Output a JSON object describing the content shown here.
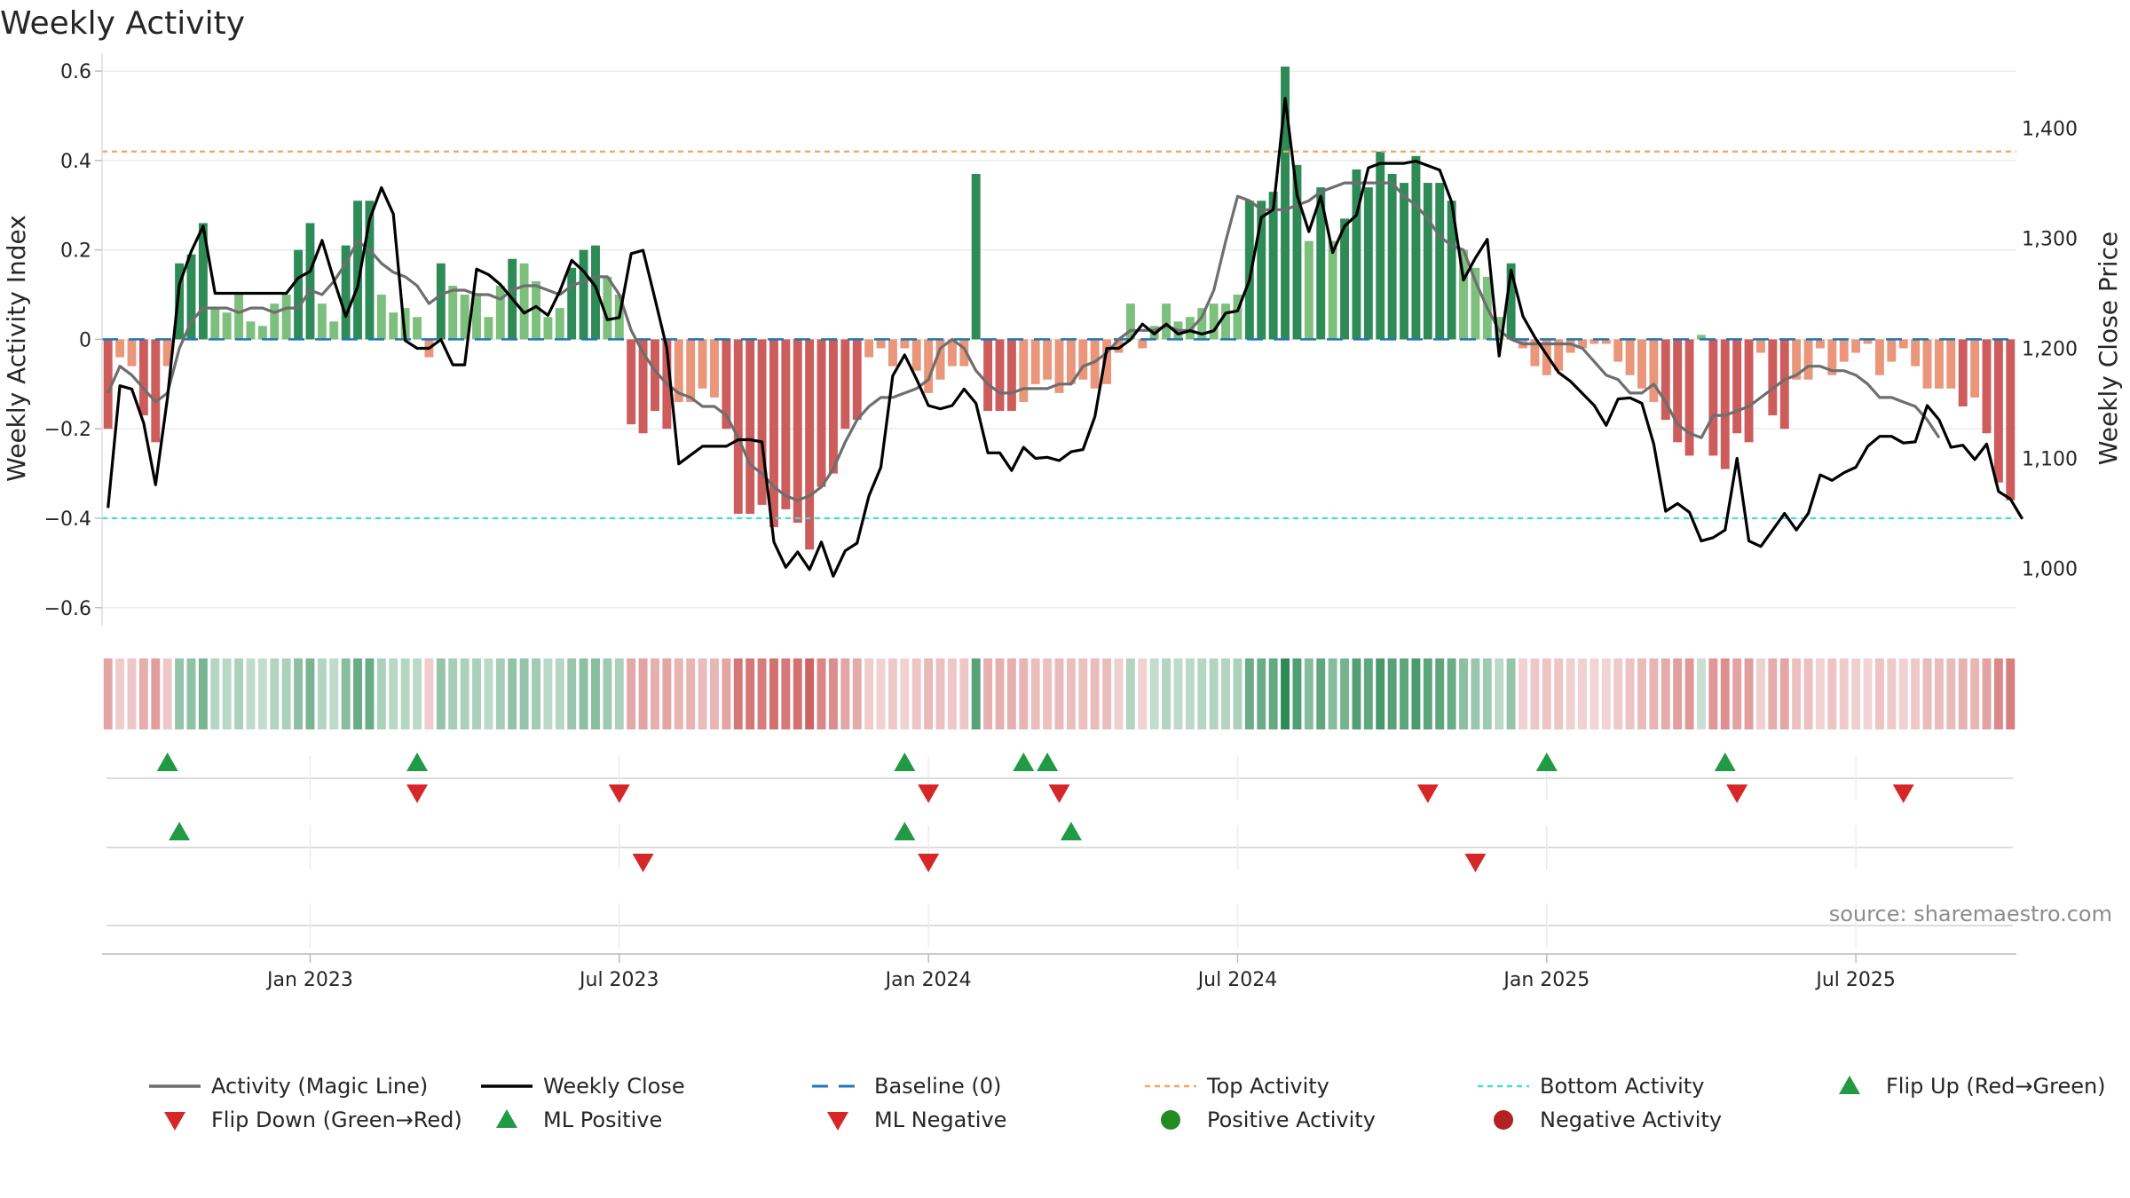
{
  "chart_data": {
    "type": "bar",
    "title": "Weekly Activity",
    "ylabel": "Weekly Activity Index",
    "y2label": "Weekly Close Price",
    "source": "source: sharemaestro.com",
    "ylim": [
      -0.66,
      0.62
    ],
    "y2lim": [
      940,
      1460
    ],
    "yticks": [
      {
        "v": 0.6,
        "label": "0.6"
      },
      {
        "v": 0.4,
        "label": "0.4"
      },
      {
        "v": 0.2,
        "label": "0.2"
      },
      {
        "v": 0,
        "label": "0"
      },
      {
        "v": -0.2,
        "label": "−0.2"
      },
      {
        "v": -0.4,
        "label": "−0.4"
      },
      {
        "v": -0.6,
        "label": "−0.6"
      }
    ],
    "y2ticks": [
      {
        "v": 1400,
        "label": "1,400"
      },
      {
        "v": 1300,
        "label": "1,300"
      },
      {
        "v": 1200,
        "label": "1,200"
      },
      {
        "v": 1100,
        "label": "1,100"
      },
      {
        "v": 1000,
        "label": "1,000"
      }
    ],
    "xticks": [
      {
        "week": 17,
        "label": "Jan 2023"
      },
      {
        "week": 43,
        "label": "Jul 2023"
      },
      {
        "week": 69,
        "label": "Jan 2024"
      },
      {
        "week": 95,
        "label": "Jul 2024"
      },
      {
        "week": 121,
        "label": "Jan 2025"
      },
      {
        "week": 147,
        "label": "Jul 2025"
      }
    ],
    "top_activity": 0.42,
    "bottom_activity": -0.4,
    "activity": [
      -0.2,
      -0.04,
      -0.06,
      -0.17,
      -0.23,
      -0.06,
      0.17,
      0.19,
      0.26,
      0.07,
      0.06,
      0.1,
      0.04,
      0.03,
      0.08,
      0.1,
      0.2,
      0.26,
      0.08,
      0.04,
      0.21,
      0.31,
      0.31,
      0.1,
      0.06,
      0.07,
      0.05,
      -0.04,
      0.17,
      0.12,
      0.1,
      0.1,
      0.05,
      0.12,
      0.18,
      0.17,
      0.13,
      0.05,
      0.07,
      0.16,
      0.2,
      0.21,
      0.14,
      0.1,
      -0.19,
      -0.21,
      -0.16,
      -0.2,
      -0.14,
      -0.14,
      -0.11,
      -0.13,
      -0.2,
      -0.39,
      -0.39,
      -0.37,
      -0.42,
      -0.38,
      -0.41,
      -0.47,
      -0.33,
      -0.3,
      -0.2,
      -0.18,
      -0.04,
      -0.02,
      -0.06,
      -0.02,
      -0.07,
      -0.12,
      -0.09,
      -0.06,
      -0.06,
      0.37,
      -0.16,
      -0.16,
      -0.16,
      -0.14,
      -0.1,
      -0.09,
      -0.12,
      -0.1,
      -0.09,
      -0.11,
      -0.1,
      -0.03,
      0.08,
      -0.02,
      0.03,
      0.08,
      0.04,
      0.05,
      0.07,
      0.08,
      0.08,
      0.1,
      0.31,
      0.31,
      0.33,
      0.61,
      0.39,
      0.22,
      0.34,
      0.22,
      0.27,
      0.38,
      0.34,
      0.42,
      0.37,
      0.35,
      0.41,
      0.35,
      0.35,
      0.31,
      0.2,
      0.16,
      0.14,
      0.05,
      0.17,
      -0.02,
      -0.06,
      -0.08,
      -0.07,
      -0.03,
      -0.02,
      -0.01,
      -0.01,
      -0.05,
      -0.08,
      -0.11,
      -0.14,
      -0.18,
      -0.23,
      -0.26,
      0.01,
      -0.26,
      -0.29,
      -0.21,
      -0.23,
      -0.03,
      -0.17,
      -0.2,
      -0.09,
      -0.09,
      -0.02,
      -0.08,
      -0.05,
      -0.03,
      -0.01,
      -0.08,
      -0.05,
      -0.02,
      -0.06,
      -0.11,
      -0.11,
      -0.11,
      -0.15,
      -0.13,
      -0.21,
      -0.32,
      -0.36
    ],
    "magic_line": [
      -0.12,
      -0.06,
      -0.08,
      -0.11,
      -0.14,
      -0.12,
      -0.02,
      0.04,
      0.07,
      0.07,
      0.07,
      0.06,
      0.07,
      0.07,
      0.06,
      0.07,
      0.07,
      0.11,
      0.1,
      0.13,
      0.17,
      0.22,
      0.2,
      0.17,
      0.15,
      0.14,
      0.12,
      0.08,
      0.1,
      0.11,
      0.11,
      0.1,
      0.1,
      0.09,
      0.11,
      0.12,
      0.12,
      0.11,
      0.1,
      0.12,
      0.13,
      0.14,
      0.14,
      0.1,
      0.02,
      -0.03,
      -0.07,
      -0.1,
      -0.12,
      -0.13,
      -0.15,
      -0.15,
      -0.17,
      -0.22,
      -0.28,
      -0.3,
      -0.33,
      -0.35,
      -0.36,
      -0.35,
      -0.33,
      -0.29,
      -0.23,
      -0.18,
      -0.15,
      -0.13,
      -0.13,
      -0.12,
      -0.11,
      -0.09,
      -0.02,
      0.0,
      -0.02,
      -0.07,
      -0.1,
      -0.12,
      -0.12,
      -0.11,
      -0.11,
      -0.11,
      -0.1,
      -0.1,
      -0.06,
      -0.05,
      -0.03,
      0.0,
      0.02,
      0.02,
      0.02,
      0.03,
      0.02,
      0.02,
      0.05,
      0.11,
      0.22,
      0.32,
      0.31,
      0.29,
      0.29,
      0.29,
      0.3,
      0.31,
      0.33,
      0.34,
      0.35,
      0.35,
      0.35,
      0.35,
      0.35,
      0.32,
      0.3,
      0.27,
      0.23,
      0.21,
      0.2,
      0.13,
      0.07,
      0.02,
      0.0,
      -0.01,
      -0.01,
      -0.01,
      -0.01,
      -0.01,
      -0.02,
      -0.05,
      -0.08,
      -0.09,
      -0.12,
      -0.12,
      -0.1,
      -0.14,
      -0.19,
      -0.21,
      -0.22,
      -0.17,
      -0.17,
      -0.16,
      -0.15,
      -0.13,
      -0.11,
      -0.09,
      -0.08,
      -0.06,
      -0.06,
      -0.07,
      -0.07,
      -0.08,
      -0.1,
      -0.13,
      -0.13,
      -0.14,
      -0.15,
      -0.18,
      -0.22
    ],
    "weekly_close": [
      1055,
      1166,
      1163,
      1132,
      1076,
      1155,
      1258,
      1288,
      1311,
      1250,
      1250,
      1250,
      1250,
      1250,
      1250,
      1250,
      1264,
      1270,
      1298,
      1262,
      1229,
      1256,
      1317,
      1346,
      1322,
      1207,
      1200,
      1200,
      1208,
      1185,
      1185,
      1272,
      1267,
      1258,
      1245,
      1232,
      1238,
      1230,
      1252,
      1280,
      1270,
      1256,
      1226,
      1228,
      1286,
      1289,
      1245,
      1200,
      1095,
      1103,
      1111,
      1111,
      1111,
      1117,
      1117,
      1115,
      1024,
      1001,
      1015,
      999,
      1024,
      993,
      1016,
      1023,
      1066,
      1092,
      1175,
      1194,
      1172,
      1148,
      1145,
      1148,
      1163,
      1150,
      1105,
      1105,
      1089,
      1110,
      1100,
      1101,
      1098,
      1106,
      1108,
      1138,
      1200,
      1200,
      1208,
      1222,
      1213,
      1222,
      1213,
      1216,
      1213,
      1216,
      1232,
      1234,
      1262,
      1319,
      1326,
      1427,
      1339,
      1306,
      1338,
      1287,
      1311,
      1321,
      1364,
      1368,
      1368,
      1368,
      1370,
      1366,
      1362,
      1333,
      1262,
      1282,
      1299,
      1193,
      1271,
      1229,
      1210,
      1194,
      1178,
      1170,
      1159,
      1148,
      1130,
      1154,
      1155,
      1150,
      1113,
      1052,
      1059,
      1051,
      1025,
      1028,
      1035,
      1100,
      1025,
      1020,
      1035,
      1050,
      1035,
      1050,
      1085,
      1080,
      1087,
      1092,
      1111,
      1120,
      1120,
      1114,
      1115,
      1148,
      1135,
      1110,
      1112,
      1099,
      1113,
      1070,
      1063,
      1045
    ],
    "flip_up": [
      5,
      26,
      67,
      77,
      79,
      121,
      136
    ],
    "flip_down": [
      26,
      43,
      69,
      80,
      111,
      137,
      151
    ],
    "ml_positive": [
      6,
      67,
      81
    ],
    "ml_negative": [
      45,
      69,
      115
    ],
    "legend": [
      {
        "key": "magic",
        "label": "Activity (Magic Line)"
      },
      {
        "key": "close",
        "label": "Weekly Close"
      },
      {
        "key": "baseline",
        "label": "Baseline (0)"
      },
      {
        "key": "top",
        "label": "Top Activity"
      },
      {
        "key": "bottom",
        "label": "Bottom Activity"
      },
      {
        "key": "flipup",
        "label": "Flip Up (Red→Green)"
      },
      {
        "key": "flipdown",
        "label": "Flip Down (Green→Red)"
      },
      {
        "key": "mlpos",
        "label": "ML Positive"
      },
      {
        "key": "mlneg",
        "label": "ML Negative"
      },
      {
        "key": "posact",
        "label": "Positive Activity"
      },
      {
        "key": "negact",
        "label": "Negative Activity"
      }
    ],
    "colors": {
      "pos_strong": "#2e8b57",
      "pos_light": "#7dbf7d",
      "neg_strong": "#cd5c5c",
      "neg_light": "#e9967a",
      "magic": "#6e6e6e",
      "close": "#000000",
      "baseline": "#1f77b4",
      "top": "#f4a460",
      "bottom": "#40e0d0",
      "up": "#229a45",
      "down": "#d62728",
      "pos_dot": "#228b22",
      "neg_dot": "#b22222"
    }
  }
}
